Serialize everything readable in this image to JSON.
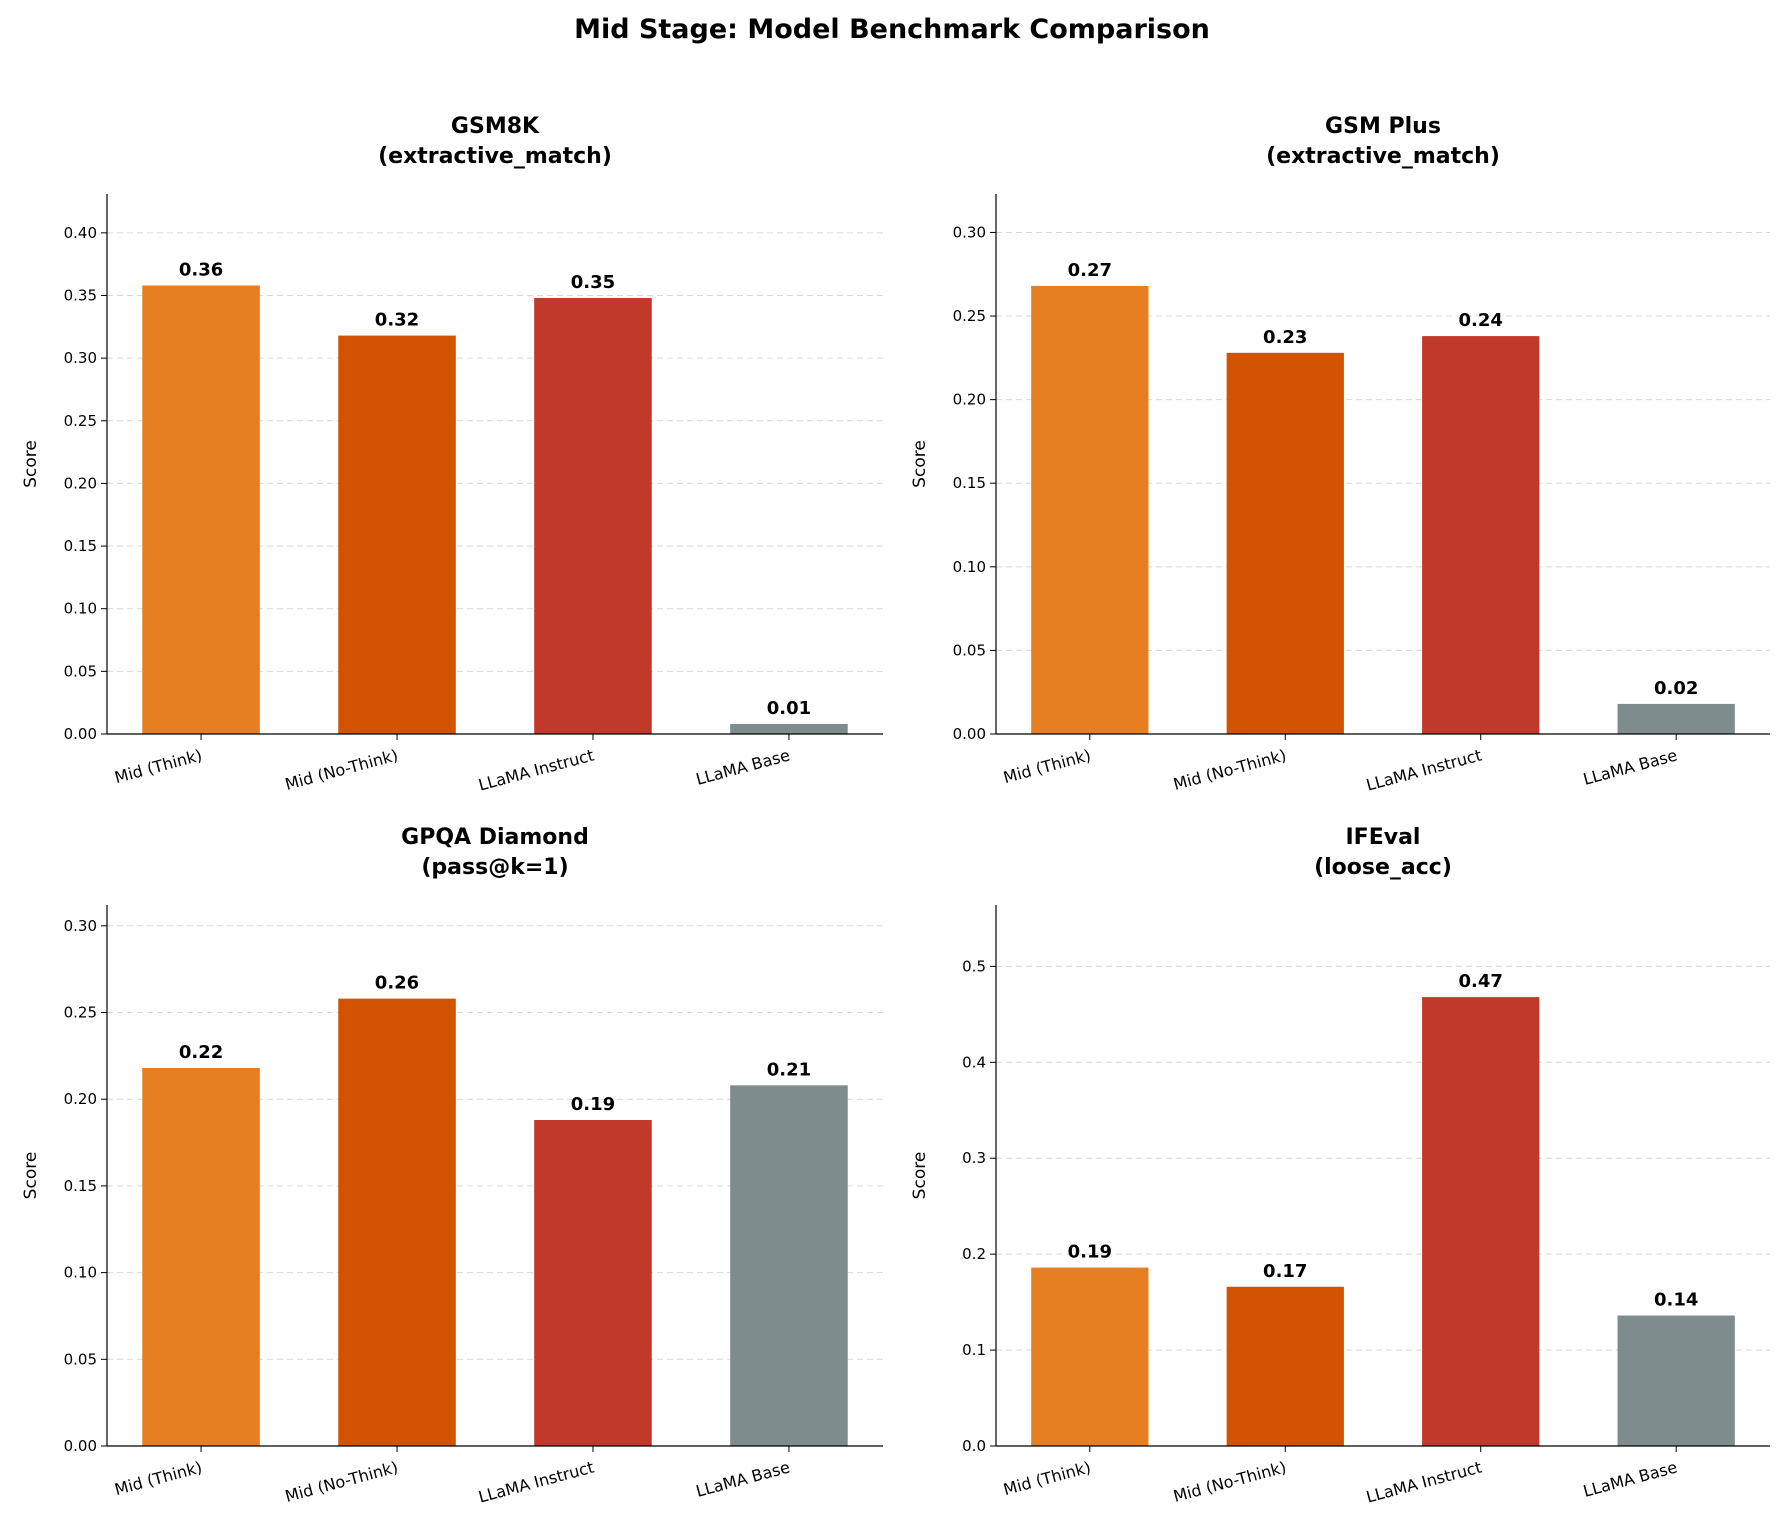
{
  "title": "Mid Stage: Model Benchmark Comparison",
  "colors": [
    "#e67e22",
    "#d35400",
    "#c0392b",
    "#7f8c8d"
  ],
  "chart_data": [
    {
      "type": "bar",
      "title": "GSM8K",
      "subtitle": "(extractive_match)",
      "ylabel": "Score",
      "categories": [
        "Mid (Think)",
        "Mid (No-Think)",
        "LLaMA Instruct",
        "LLaMA Base"
      ],
      "values": [
        0.358,
        0.318,
        0.348,
        0.008
      ],
      "labels": [
        "0.36",
        "0.32",
        "0.35",
        "0.01"
      ],
      "ylim": [
        0,
        0.431
      ],
      "yticks": [
        "0.00",
        "0.05",
        "0.10",
        "0.15",
        "0.20",
        "0.25",
        "0.30",
        "0.35",
        "0.40"
      ],
      "ytick_values": [
        0,
        0.05,
        0.1,
        0.15,
        0.2,
        0.25,
        0.3,
        0.35,
        0.4
      ],
      "grid": "y-dashed"
    },
    {
      "type": "bar",
      "title": "GSM Plus",
      "subtitle": "(extractive_match)",
      "ylabel": "Score",
      "categories": [
        "Mid (Think)",
        "Mid (No-Think)",
        "LLaMA Instruct",
        "LLaMA Base"
      ],
      "values": [
        0.268,
        0.228,
        0.238,
        0.018
      ],
      "labels": [
        "0.27",
        "0.23",
        "0.24",
        "0.02"
      ],
      "ylim": [
        0,
        0.323
      ],
      "yticks": [
        "0.00",
        "0.05",
        "0.10",
        "0.15",
        "0.20",
        "0.25",
        "0.30"
      ],
      "ytick_values": [
        0,
        0.05,
        0.1,
        0.15,
        0.2,
        0.25,
        0.3
      ],
      "grid": "y-dashed"
    },
    {
      "type": "bar",
      "title": "GPQA Diamond",
      "subtitle": "(pass@k=1)",
      "ylabel": "Score",
      "categories": [
        "Mid (Think)",
        "Mid (No-Think)",
        "LLaMA Instruct",
        "LLaMA Base"
      ],
      "values": [
        0.218,
        0.258,
        0.188,
        0.208
      ],
      "labels": [
        "0.22",
        "0.26",
        "0.19",
        "0.21"
      ],
      "ylim": [
        0,
        0.312
      ],
      "yticks": [
        "0.00",
        "0.05",
        "0.10",
        "0.15",
        "0.20",
        "0.25",
        "0.30"
      ],
      "ytick_values": [
        0,
        0.05,
        0.1,
        0.15,
        0.2,
        0.25,
        0.3
      ],
      "grid": "y-dashed"
    },
    {
      "type": "bar",
      "title": "IFEval",
      "subtitle": "(loose_acc)",
      "ylabel": "Score",
      "categories": [
        "Mid (Think)",
        "Mid (No-Think)",
        "LLaMA Instruct",
        "LLaMA Base"
      ],
      "values": [
        0.186,
        0.166,
        0.468,
        0.136
      ],
      "labels": [
        "0.19",
        "0.17",
        "0.47",
        "0.14"
      ],
      "ylim": [
        0,
        0.564
      ],
      "yticks": [
        "0.0",
        "0.1",
        "0.2",
        "0.3",
        "0.4",
        "0.5"
      ],
      "ytick_values": [
        0,
        0.1,
        0.2,
        0.3,
        0.4,
        0.5
      ],
      "grid": "y-dashed"
    }
  ]
}
